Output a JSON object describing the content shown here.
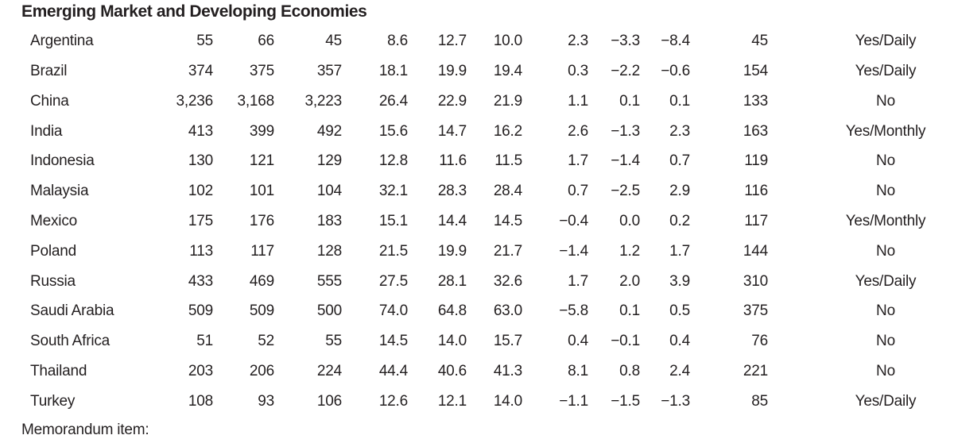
{
  "table": {
    "section_title": "Emerging Market and Developing Economies",
    "memorandum_label": "Memorandum item:",
    "rows": [
      {
        "country": "Argentina",
        "values": [
          "55",
          "66",
          "45",
          "8.6",
          "12.7",
          "10.0",
          "2.3",
          "−3.3",
          "−8.4",
          "45"
        ],
        "policy": "Yes/Daily"
      },
      {
        "country": "Brazil",
        "values": [
          "374",
          "375",
          "357",
          "18.1",
          "19.9",
          "19.4",
          "0.3",
          "−2.2",
          "−0.6",
          "154"
        ],
        "policy": "Yes/Daily"
      },
      {
        "country": "China",
        "values": [
          "3,236",
          "3,168",
          "3,223",
          "26.4",
          "22.9",
          "21.9",
          "1.1",
          "0.1",
          "0.1",
          "133"
        ],
        "policy": "No"
      },
      {
        "country": "India",
        "values": [
          "413",
          "399",
          "492",
          "15.6",
          "14.7",
          "16.2",
          "2.6",
          "−1.3",
          "2.3",
          "163"
        ],
        "policy": "Yes/Monthly"
      },
      {
        "country": "Indonesia",
        "values": [
          "130",
          "121",
          "129",
          "12.8",
          "11.6",
          "11.5",
          "1.7",
          "−1.4",
          "0.7",
          "119"
        ],
        "policy": "No"
      },
      {
        "country": "Malaysia",
        "values": [
          "102",
          "101",
          "104",
          "32.1",
          "28.3",
          "28.4",
          "0.7",
          "−2.5",
          "2.9",
          "116"
        ],
        "policy": "No"
      },
      {
        "country": "Mexico",
        "values": [
          "175",
          "176",
          "183",
          "15.1",
          "14.4",
          "14.5",
          "−0.4",
          "0.0",
          "0.2",
          "117"
        ],
        "policy": "Yes/Monthly"
      },
      {
        "country": "Poland",
        "values": [
          "113",
          "117",
          "128",
          "21.5",
          "19.9",
          "21.7",
          "−1.4",
          "1.2",
          "1.7",
          "144"
        ],
        "policy": "No"
      },
      {
        "country": "Russia",
        "values": [
          "433",
          "469",
          "555",
          "27.5",
          "28.1",
          "32.6",
          "1.7",
          "2.0",
          "3.9",
          "310"
        ],
        "policy": "Yes/Daily"
      },
      {
        "country": "Saudi Arabia",
        "values": [
          "509",
          "509",
          "500",
          "74.0",
          "64.8",
          "63.0",
          "−5.8",
          "0.1",
          "0.5",
          "375"
        ],
        "policy": "No"
      },
      {
        "country": "South Africa",
        "values": [
          "51",
          "52",
          "55",
          "14.5",
          "14.0",
          "15.7",
          "0.4",
          "−0.1",
          "0.4",
          "76"
        ],
        "policy": "No"
      },
      {
        "country": "Thailand",
        "values": [
          "203",
          "206",
          "224",
          "44.4",
          "40.6",
          "41.3",
          "8.1",
          "0.8",
          "2.4",
          "221"
        ],
        "policy": "No"
      },
      {
        "country": "Turkey",
        "values": [
          "108",
          "93",
          "106",
          "12.6",
          "12.1",
          "14.0",
          "−1.1",
          "−1.5",
          "−1.3",
          "85"
        ],
        "policy": "Yes/Daily"
      }
    ]
  }
}
